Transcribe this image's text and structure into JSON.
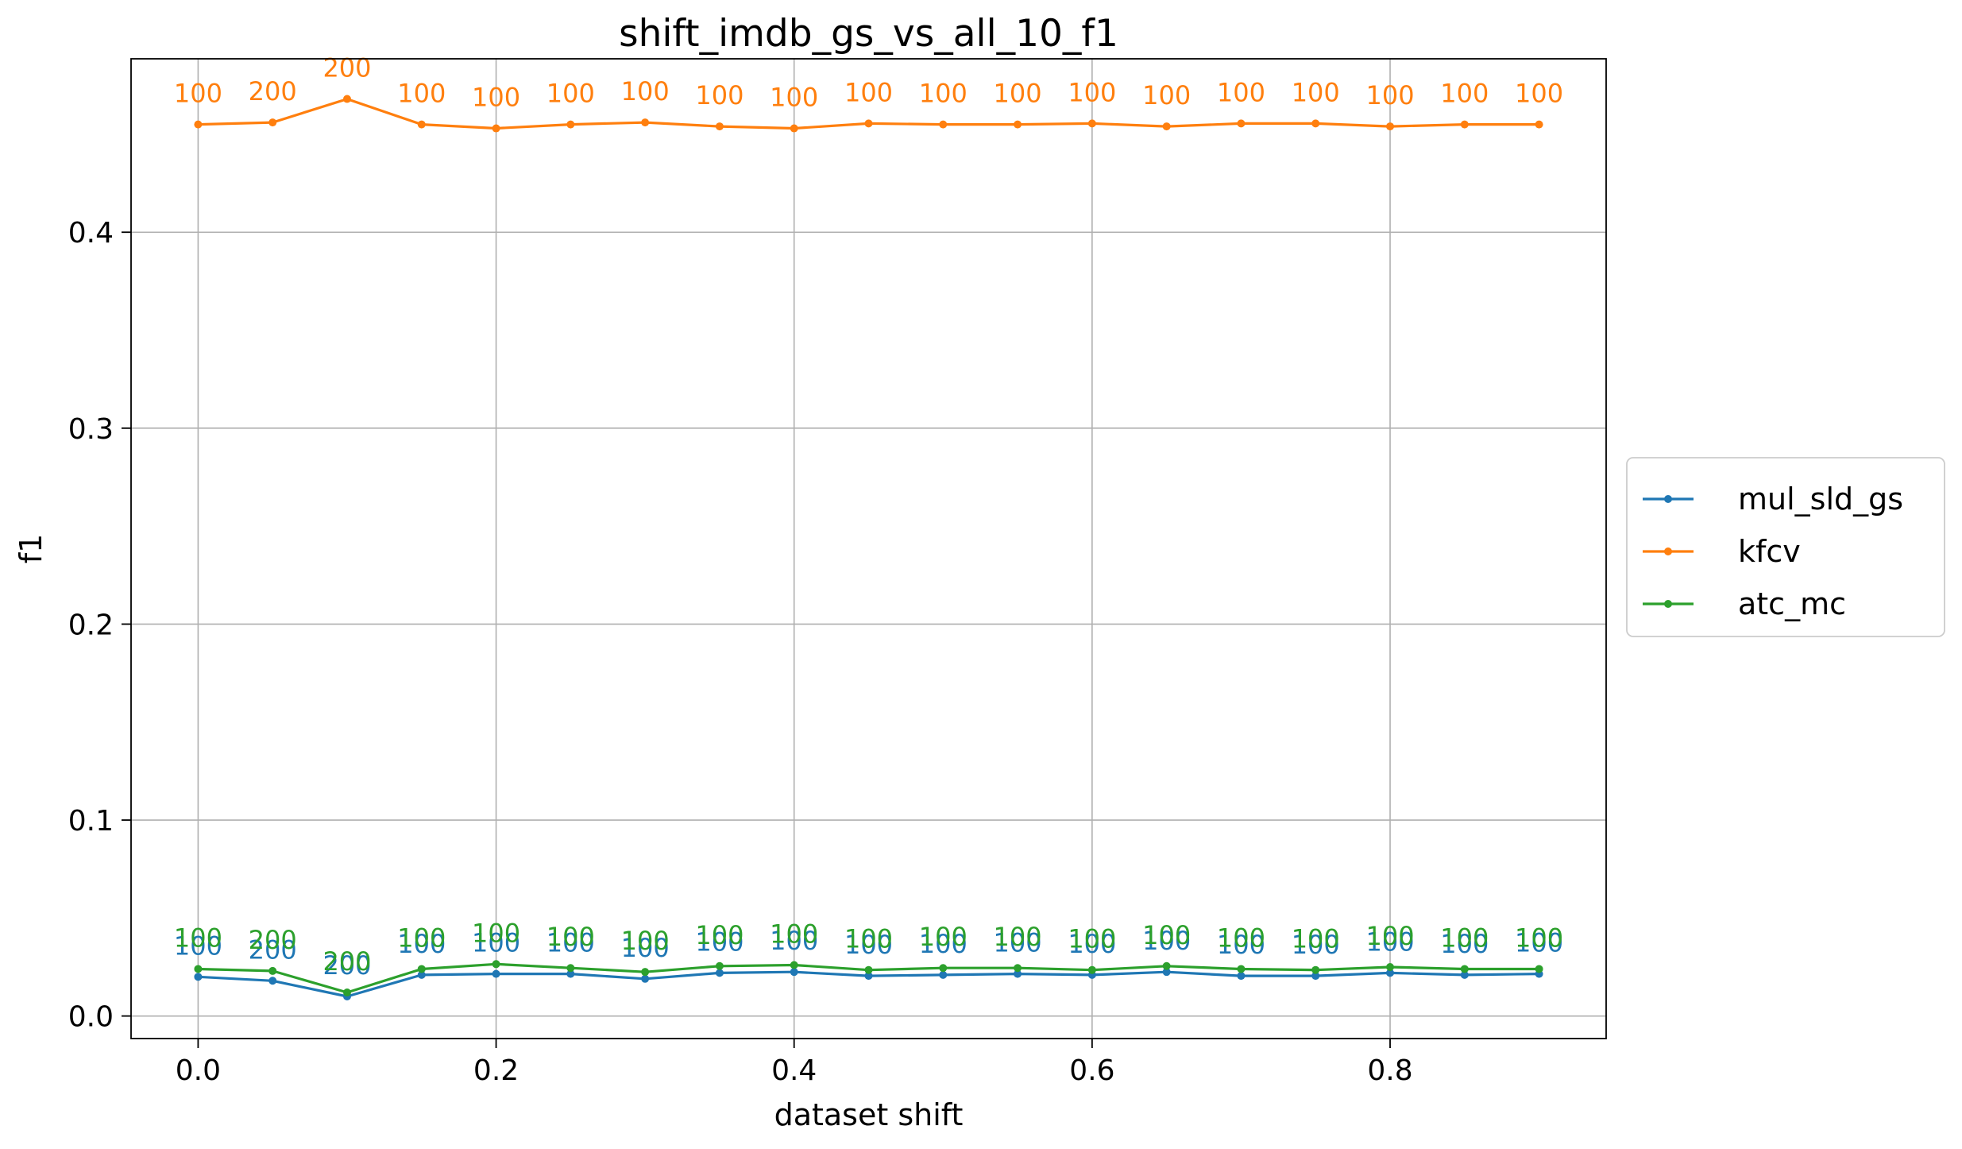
{
  "chart_data": {
    "type": "line",
    "title": "shift_imdb_gs_vs_all_10_f1",
    "xlabel": "dataset shift",
    "ylabel": "f1",
    "xlim": [
      -0.045,
      0.945
    ],
    "ylim": [
      -0.0115,
      0.4885
    ],
    "xticks": [
      0.0,
      0.2,
      0.4,
      0.6,
      0.8
    ],
    "xtick_labels": [
      "0.0",
      "0.2",
      "0.4",
      "0.6",
      "0.8"
    ],
    "yticks": [
      0.0,
      0.1,
      0.2,
      0.3,
      0.4
    ],
    "ytick_labels": [
      "0.0",
      "0.1",
      "0.2",
      "0.3",
      "0.4"
    ],
    "grid": true,
    "legend_position": "right-outside",
    "x": [
      0.0,
      0.05,
      0.1,
      0.15,
      0.2,
      0.25,
      0.3,
      0.35,
      0.4,
      0.45,
      0.5,
      0.55,
      0.6,
      0.65,
      0.7,
      0.75,
      0.8,
      0.85,
      0.9
    ],
    "series": [
      {
        "name": "mul_sld_gs",
        "color": "#1f77b4",
        "values": [
          0.02,
          0.018,
          0.01,
          0.021,
          0.0215,
          0.0215,
          0.019,
          0.022,
          0.0225,
          0.0205,
          0.021,
          0.0215,
          0.021,
          0.0225,
          0.0205,
          0.0205,
          0.022,
          0.021,
          0.0215
        ],
        "point_labels": [
          "100",
          "200",
          "200",
          "100",
          "100",
          "100",
          "100",
          "100",
          "100",
          "100",
          "100",
          "100",
          "100",
          "100",
          "100",
          "100",
          "100",
          "100",
          "100"
        ]
      },
      {
        "name": "kfcv",
        "color": "#ff7f0e",
        "values": [
          0.455,
          0.456,
          0.468,
          0.455,
          0.453,
          0.455,
          0.456,
          0.454,
          0.453,
          0.4555,
          0.455,
          0.455,
          0.4555,
          0.454,
          0.4555,
          0.4555,
          0.454,
          0.455,
          0.455
        ],
        "point_labels": [
          "100",
          "200",
          "200",
          "100",
          "100",
          "100",
          "100",
          "100",
          "100",
          "100",
          "100",
          "100",
          "100",
          "100",
          "100",
          "100",
          "100",
          "100",
          "100"
        ]
      },
      {
        "name": "atc_mc",
        "color": "#2ca02c",
        "values": [
          0.024,
          0.023,
          0.012,
          0.024,
          0.0265,
          0.0245,
          0.0225,
          0.0255,
          0.026,
          0.0235,
          0.0245,
          0.0245,
          0.0235,
          0.0255,
          0.024,
          0.0235,
          0.025,
          0.024,
          0.024
        ],
        "point_labels": [
          "100",
          "200",
          "200",
          "100",
          "100",
          "100",
          "100",
          "100",
          "100",
          "100",
          "100",
          "100",
          "100",
          "100",
          "100",
          "100",
          "100",
          "100",
          "100"
        ]
      }
    ]
  }
}
